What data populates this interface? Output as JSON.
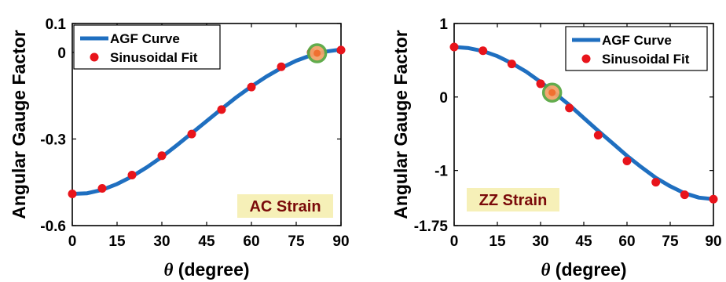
{
  "chart_data": [
    {
      "type": "line",
      "xlabel_symbol": "θ",
      "xlabel_text": " (degree)",
      "ylabel": "Angular Gauge Factor",
      "xlim": [
        0,
        90
      ],
      "ylim": [
        -0.6,
        0.1
      ],
      "x_ticks": [
        "0",
        "15",
        "30",
        "45",
        "60",
        "75",
        "90"
      ],
      "y_ticks": [
        "0.1",
        "0",
        "-0.3",
        "-0.6"
      ],
      "annotation": "AC Strain",
      "legend": {
        "placement": "top-left",
        "entries": [
          "AGF Curve",
          "Sinusoidal Fit"
        ]
      },
      "colors": {
        "curve": "#1f6fc0",
        "fit": "#e8141b",
        "highlight_ring": "#5aa844",
        "highlight_fill": "#f2a36a",
        "annotation_bg": "#f6f0b8"
      },
      "series": [
        {
          "name": "AGF Curve",
          "x": [
            0,
            5,
            10,
            15,
            20,
            25,
            30,
            35,
            40,
            45,
            50,
            55,
            60,
            65,
            70,
            75,
            80,
            85,
            90
          ],
          "y": [
            -0.49,
            -0.488,
            -0.476,
            -0.456,
            -0.43,
            -0.398,
            -0.362,
            -0.322,
            -0.28,
            -0.238,
            -0.196,
            -0.155,
            -0.118,
            -0.084,
            -0.054,
            -0.029,
            -0.01,
            0.003,
            0.01
          ]
        },
        {
          "name": "Sinusoidal Fit",
          "x": [
            0,
            10,
            20,
            30,
            40,
            50,
            60,
            70,
            80,
            90
          ],
          "y": [
            -0.49,
            -0.471,
            -0.425,
            -0.358,
            -0.283,
            -0.198,
            -0.12,
            -0.05,
            0.0,
            0.008
          ]
        }
      ],
      "highlight": {
        "x": 82,
        "y": -0.003
      }
    },
    {
      "type": "line",
      "xlabel_symbol": "θ",
      "xlabel_text": " (degree)",
      "ylabel": "Angular Gauge Factor",
      "xlim": [
        0,
        90
      ],
      "ylim": [
        -1.75,
        1.0
      ],
      "x_ticks": [
        "0",
        "15",
        "30",
        "45",
        "60",
        "75",
        "90"
      ],
      "y_ticks": [
        "1",
        "0",
        "-1",
        "-1.75"
      ],
      "annotation": "ZZ Strain",
      "legend": {
        "placement": "top-right",
        "entries": [
          "AGF Curve",
          "Sinusoidal Fit"
        ]
      },
      "colors": {
        "curve": "#1f6fc0",
        "fit": "#e8141b",
        "highlight_ring": "#5aa844",
        "highlight_fill": "#f2a36a",
        "annotation_bg": "#f6f0b8"
      },
      "series": [
        {
          "name": "AGF Curve",
          "x": [
            0,
            5,
            10,
            15,
            20,
            25,
            30,
            35,
            40,
            45,
            50,
            55,
            60,
            65,
            70,
            75,
            80,
            85,
            90
          ],
          "y": [
            0.68,
            0.665,
            0.625,
            0.555,
            0.46,
            0.345,
            0.205,
            0.05,
            -0.11,
            -0.285,
            -0.46,
            -0.63,
            -0.8,
            -0.955,
            -1.1,
            -1.215,
            -1.31,
            -1.37,
            -1.39
          ]
        },
        {
          "name": "Sinusoidal Fit",
          "x": [
            0,
            10,
            20,
            30,
            40,
            50,
            60,
            70,
            80,
            90
          ],
          "y": [
            0.68,
            0.63,
            0.45,
            0.18,
            -0.15,
            -0.52,
            -0.87,
            -1.16,
            -1.33,
            -1.39
          ]
        }
      ],
      "highlight": {
        "x": 34,
        "y": 0.06
      }
    }
  ]
}
